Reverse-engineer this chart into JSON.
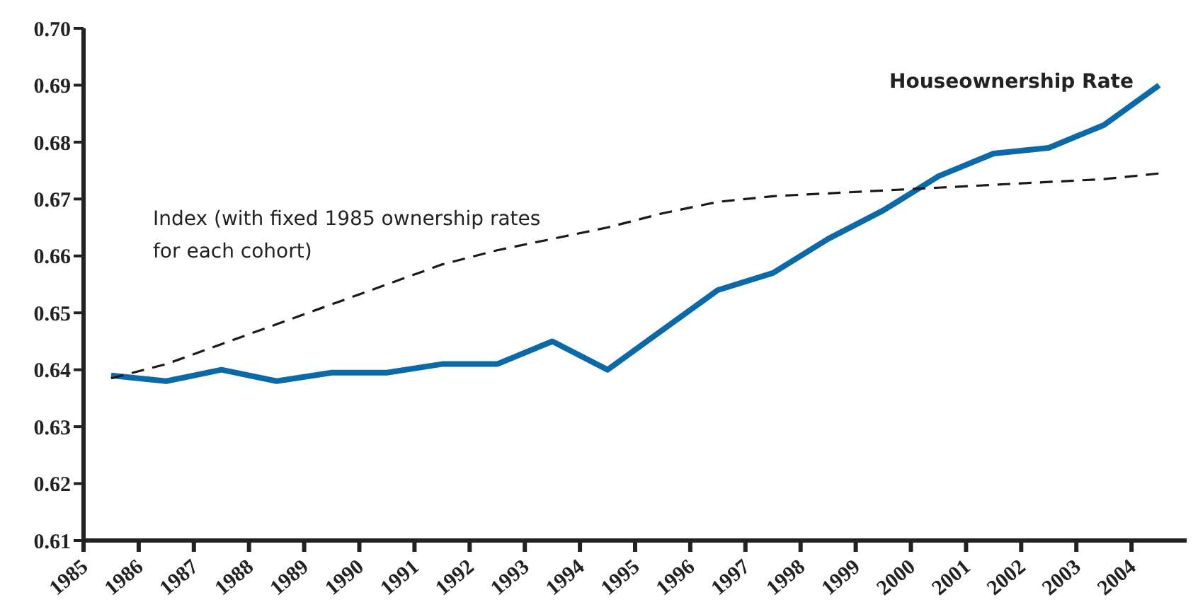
{
  "chart_data": {
    "type": "line",
    "x": [
      1985.5,
      1986.5,
      1987.5,
      1988.5,
      1989.5,
      1990.5,
      1991.5,
      1992.5,
      1993.5,
      1994.5,
      1995.5,
      1996.5,
      1997.5,
      1998.5,
      1999.5,
      2000.5,
      2001.5,
      2002.5,
      2003.5,
      2004.5
    ],
    "series": [
      {
        "name": "Houseownership Rate",
        "color": "#0a69a8",
        "line_style": "solid",
        "values": [
          0.639,
          0.638,
          0.64,
          0.638,
          0.6395,
          0.6395,
          0.641,
          0.641,
          0.645,
          0.64,
          0.647,
          0.654,
          0.657,
          0.663,
          0.668,
          0.674,
          0.678,
          0.679,
          0.683,
          0.69
        ]
      },
      {
        "name": "Index (with fixed 1985 ownership rates for each cohort)",
        "color": "#1a1a1a",
        "line_style": "dashed",
        "values": [
          0.6385,
          0.641,
          0.6445,
          0.648,
          0.6515,
          0.655,
          0.6585,
          0.661,
          0.663,
          0.665,
          0.6675,
          0.6695,
          0.6705,
          0.671,
          0.6715,
          0.672,
          0.6725,
          0.673,
          0.6735,
          0.6745
        ]
      }
    ],
    "xlim": [
      1985,
      2005
    ],
    "xticks": [
      1985,
      1986,
      1987,
      1988,
      1989,
      1990,
      1991,
      1992,
      1993,
      1994,
      1995,
      1996,
      1997,
      1998,
      1999,
      2000,
      2001,
      2002,
      2003,
      2004
    ],
    "ylim": [
      0.61,
      0.7
    ],
    "yticks": [
      {
        "value": 0.61,
        "label": "0.61"
      },
      {
        "value": 0.62,
        "label": "0.62"
      },
      {
        "value": 0.63,
        "label": "0.63"
      },
      {
        "value": 0.64,
        "label": "0.64"
      },
      {
        "value": 0.65,
        "label": "0.65"
      },
      {
        "value": 0.66,
        "label": "0.66"
      },
      {
        "value": 0.67,
        "label": "0.67"
      },
      {
        "value": 0.68,
        "label": "0.68"
      },
      {
        "value": 0.69,
        "label": "0.69"
      },
      {
        "value": 0.7,
        "label": "0.70"
      }
    ],
    "grid": false,
    "legend": false,
    "marker": "none"
  }
}
